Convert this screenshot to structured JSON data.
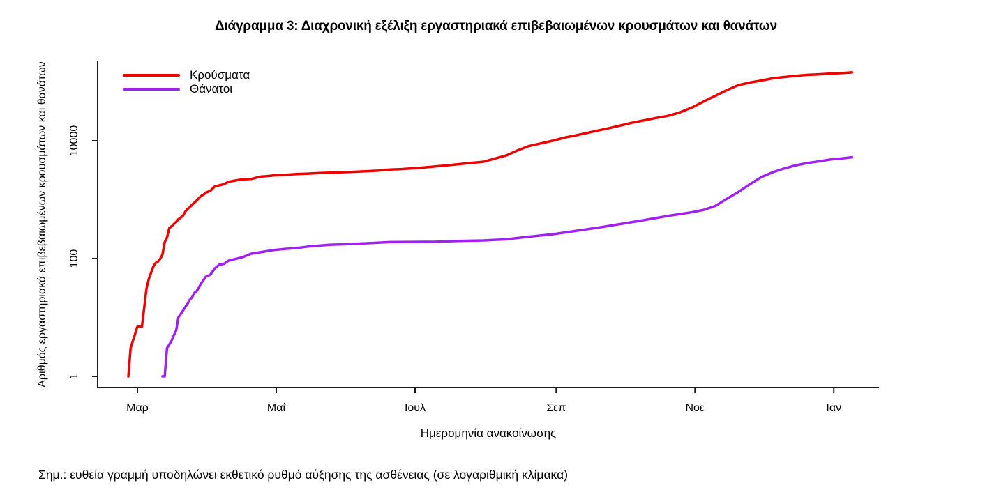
{
  "page": {
    "note": "Σημ.: ευθεία γραμμή υποδηλώνει εκθετικό ρυθμό αύξησης της ασθένειας (σε λογαριθμική κλίμακα)"
  },
  "chart_data": {
    "type": "line",
    "title": "Διάγραμμα 3: Διαχρονική εξέλιξη εργαστηριακά επιβεβαιωμένων κρουσμάτων και θανάτων",
    "xlabel": "Ημερομηνία ανακοίνωσης",
    "ylabel": "Αριθμός εργαστηριακά επιβεβαιωμένων κρουσμάτων και θανάτων",
    "y_scale": "log10",
    "ylim": [
      1,
      200000
    ],
    "grid": false,
    "legend_position": "top-left",
    "y_ticks": [
      "1",
      "100",
      "10000"
    ],
    "y_tick_values": [
      1,
      100,
      10000
    ],
    "x_ticks": [
      {
        "label": "Μαρ",
        "day": 0
      },
      {
        "label": "Μαΐ",
        "day": 61
      },
      {
        "label": "Ιουλ",
        "day": 122
      },
      {
        "label": "Σεπ",
        "day": 184
      },
      {
        "label": "Νοε",
        "day": 245
      },
      {
        "label": "Ιαν",
        "day": 306
      }
    ],
    "x_day_zero": "1 Μαρτίου 2020",
    "axis_color": "#1a1a1a",
    "series": [
      {
        "key": "cases",
        "name": "Κρούσματα",
        "color": "#ee0000",
        "points": [
          [
            -4,
            1
          ],
          [
            -3,
            3
          ],
          [
            -2,
            4
          ],
          [
            0,
            7
          ],
          [
            2,
            7
          ],
          [
            4,
            31
          ],
          [
            5,
            45
          ],
          [
            7,
            73
          ],
          [
            8,
            84
          ],
          [
            9,
            89
          ],
          [
            10,
            99
          ],
          [
            11,
            117
          ],
          [
            12,
            190
          ],
          [
            13,
            228
          ],
          [
            14,
            331
          ],
          [
            15,
            352
          ],
          [
            16,
            387
          ],
          [
            17,
            418
          ],
          [
            18,
            464
          ],
          [
            19,
            495
          ],
          [
            20,
            530
          ],
          [
            21,
            624
          ],
          [
            22,
            695
          ],
          [
            23,
            743
          ],
          [
            24,
            821
          ],
          [
            25,
            892
          ],
          [
            26,
            966
          ],
          [
            27,
            1061
          ],
          [
            28,
            1156
          ],
          [
            29,
            1212
          ],
          [
            30,
            1314
          ],
          [
            32,
            1415
          ],
          [
            34,
            1673
          ],
          [
            36,
            1755
          ],
          [
            38,
            1832
          ],
          [
            40,
            2011
          ],
          [
            43,
            2114
          ],
          [
            46,
            2207
          ],
          [
            50,
            2245
          ],
          [
            54,
            2463
          ],
          [
            58,
            2534
          ],
          [
            60,
            2591
          ],
          [
            64,
            2632
          ],
          [
            70,
            2716
          ],
          [
            75,
            2770
          ],
          [
            80,
            2840
          ],
          [
            85,
            2882
          ],
          [
            91,
            2937
          ],
          [
            96,
            2980
          ],
          [
            101,
            3049
          ],
          [
            106,
            3121
          ],
          [
            111,
            3256
          ],
          [
            116,
            3310
          ],
          [
            121,
            3409
          ],
          [
            126,
            3519
          ],
          [
            131,
            3672
          ],
          [
            136,
            3826
          ],
          [
            141,
            4007
          ],
          [
            146,
            4193
          ],
          [
            152,
            4401
          ],
          [
            157,
            4974
          ],
          [
            162,
            5623
          ],
          [
            167,
            6858
          ],
          [
            172,
            8138
          ],
          [
            177,
            8987
          ],
          [
            183,
            10134
          ],
          [
            188,
            11386
          ],
          [
            193,
            12452
          ],
          [
            198,
            13730
          ],
          [
            203,
            15142
          ],
          [
            208,
            16627
          ],
          [
            213,
            18475
          ],
          [
            218,
            20541
          ],
          [
            223,
            22358
          ],
          [
            228,
            24450
          ],
          [
            233,
            26469
          ],
          [
            238,
            29992
          ],
          [
            244,
            37196
          ],
          [
            249,
            46892
          ],
          [
            254,
            58187
          ],
          [
            259,
            72510
          ],
          [
            264,
            87812
          ],
          [
            269,
            97288
          ],
          [
            274,
            105271
          ],
          [
            279,
            114568
          ],
          [
            284,
            120605
          ],
          [
            289,
            126372
          ],
          [
            294,
            131296
          ],
          [
            299,
            134336
          ],
          [
            305,
            138850
          ],
          [
            310,
            141453
          ],
          [
            314,
            144738
          ]
        ]
      },
      {
        "key": "deaths",
        "name": "Θάνατοι",
        "color": "#a020f0",
        "points": [
          [
            11,
            1
          ],
          [
            12,
            1
          ],
          [
            13,
            3
          ],
          [
            15,
            4
          ],
          [
            16,
            5
          ],
          [
            17,
            6
          ],
          [
            18,
            10
          ],
          [
            20,
            13
          ],
          [
            21,
            15
          ],
          [
            22,
            17
          ],
          [
            23,
            20
          ],
          [
            24,
            22
          ],
          [
            25,
            26
          ],
          [
            26,
            28
          ],
          [
            27,
            32
          ],
          [
            28,
            38
          ],
          [
            29,
            43
          ],
          [
            30,
            49
          ],
          [
            32,
            53
          ],
          [
            34,
            68
          ],
          [
            36,
            79
          ],
          [
            38,
            81
          ],
          [
            40,
            92
          ],
          [
            43,
            98
          ],
          [
            46,
            105
          ],
          [
            50,
            121
          ],
          [
            55,
            130
          ],
          [
            60,
            140
          ],
          [
            65,
            146
          ],
          [
            70,
            151
          ],
          [
            75,
            160
          ],
          [
            80,
            166
          ],
          [
            85,
            172
          ],
          [
            91,
            175
          ],
          [
            101,
            182
          ],
          [
            111,
            190
          ],
          [
            121,
            192
          ],
          [
            131,
            193
          ],
          [
            141,
            199
          ],
          [
            152,
            203
          ],
          [
            162,
            212
          ],
          [
            172,
            235
          ],
          [
            183,
            260
          ],
          [
            193,
            297
          ],
          [
            203,
            338
          ],
          [
            213,
            391
          ],
          [
            223,
            452
          ],
          [
            233,
            528
          ],
          [
            244,
            615
          ],
          [
            249,
            673
          ],
          [
            254,
            784
          ],
          [
            259,
            1035
          ],
          [
            264,
            1347
          ],
          [
            269,
            1815
          ],
          [
            274,
            2406
          ],
          [
            279,
            2902
          ],
          [
            284,
            3370
          ],
          [
            289,
            3803
          ],
          [
            294,
            4172
          ],
          [
            299,
            4457
          ],
          [
            305,
            4838
          ],
          [
            310,
            5051
          ],
          [
            314,
            5263
          ]
        ]
      }
    ]
  }
}
